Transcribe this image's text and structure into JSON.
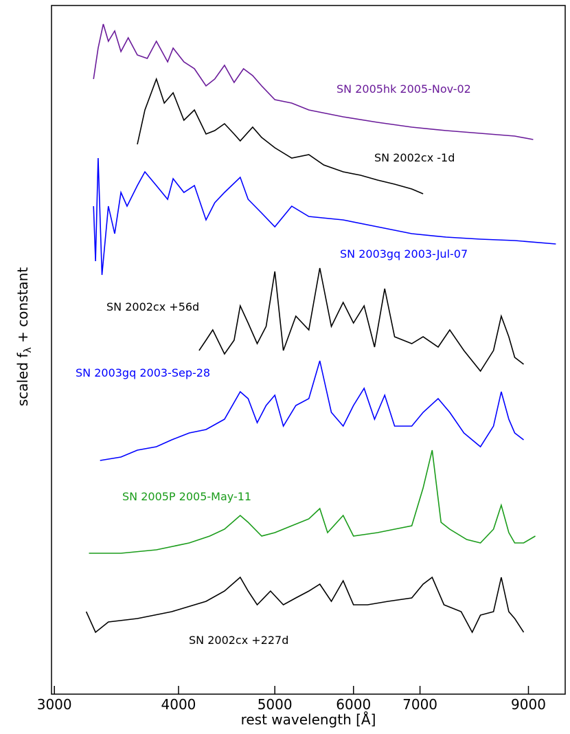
{
  "chart_data": {
    "type": "line",
    "xlabel": "rest wavelength [Å]",
    "ylabel_parts": [
      "scaled f",
      "λ",
      " + constant"
    ],
    "xscale": "log",
    "xlim": [
      2980,
      9800
    ],
    "xticks": [
      3000,
      4000,
      5000,
      6000,
      7000,
      9000
    ],
    "ylim": [
      0,
      100.2
    ],
    "series": [
      {
        "name": "SN 2005hk 2005-Nov-02",
        "color": "#6a1b9a",
        "x": [
          3285,
          3320,
          3360,
          3400,
          3450,
          3500,
          3560,
          3636,
          3720,
          3800,
          3900,
          3950,
          4050,
          4150,
          4263,
          4350,
          4450,
          4550,
          4650,
          4750,
          4850,
          5000,
          5200,
          5410,
          5858,
          6343,
          6868,
          7436,
          8052,
          8718,
          9100
        ],
        "values": [
          89.5,
          94,
          97.5,
          95,
          96.5,
          93.5,
          95.5,
          93,
          92.5,
          95,
          92,
          94,
          92,
          91,
          88.5,
          89.5,
          91.5,
          89,
          91,
          90,
          88.5,
          86.5,
          86,
          85,
          84,
          83.2,
          82.5,
          82,
          81.6,
          81.2,
          80.7
        ]
      },
      {
        "name": "SN 2002cx -1d",
        "color": "#000000",
        "x": [
          3636,
          3700,
          3800,
          3870,
          3950,
          4050,
          4150,
          4263,
          4350,
          4450,
          4550,
          4615,
          4750,
          4850,
          5000,
          5200,
          5410,
          5600,
          5858,
          6100,
          6343,
          6600,
          6868,
          7050
        ],
        "values": [
          80,
          85,
          89.5,
          86,
          87.5,
          83.5,
          85,
          81.5,
          82,
          83,
          81.5,
          80.5,
          82.5,
          81,
          79.5,
          78,
          78.5,
          77,
          76,
          75.5,
          74.8,
          74.2,
          73.5,
          72.8
        ]
      },
      {
        "name": "SN 2003gq 2003-Jul-07",
        "color": "#0000ff",
        "x": [
          3285,
          3300,
          3320,
          3350,
          3400,
          3450,
          3500,
          3550,
          3636,
          3700,
          3800,
          3900,
          3950,
          4050,
          4150,
          4263,
          4350,
          4450,
          4615,
          4700,
          4850,
          5000,
          5200,
          5410,
          5858,
          6343,
          6868,
          7436,
          8052,
          8718,
          9590
        ],
        "values": [
          71,
          63,
          78,
          61,
          71,
          67,
          73,
          71,
          74,
          76,
          74,
          72,
          75,
          73,
          74,
          69,
          71.5,
          73,
          75.2,
          72,
          70,
          68,
          71,
          69.5,
          69,
          68,
          67,
          66.5,
          66.2,
          66,
          65.5
        ]
      },
      {
        "name": "SN 2002cx +56d",
        "color": "#000000",
        "x": [
          4195,
          4263,
          4330,
          4450,
          4550,
          4615,
          4700,
          4800,
          4900,
          5000,
          5100,
          5250,
          5410,
          5550,
          5700,
          5858,
          6000,
          6150,
          6300,
          6450,
          6600,
          6868,
          7050,
          7300,
          7500,
          7750,
          8052,
          8300,
          8450,
          8600,
          8718,
          8900
        ],
        "values": [
          50,
          51.5,
          53,
          49.5,
          51.5,
          56.5,
          54,
          51,
          53.5,
          61.5,
          50,
          55,
          53,
          62,
          53.5,
          57,
          54,
          56.5,
          50.5,
          59,
          52,
          51,
          52,
          50.5,
          53,
          50,
          47,
          50,
          55,
          52,
          49,
          48
        ]
      },
      {
        "name": "SN 2003gq 2003-Sep-28",
        "color": "#0000ff",
        "x": [
          3335,
          3500,
          3636,
          3800,
          3937,
          4100,
          4263,
          4450,
          4615,
          4700,
          4800,
          4900,
          5000,
          5100,
          5250,
          5410,
          5550,
          5700,
          5858,
          6000,
          6150,
          6300,
          6450,
          6600,
          6868,
          7050,
          7300,
          7500,
          7750,
          8052,
          8300,
          8450,
          8600,
          8718,
          8900
        ],
        "values": [
          34,
          34.5,
          35.5,
          36,
          37,
          38,
          38.5,
          40,
          44,
          43,
          39.5,
          42,
          43.5,
          39,
          42,
          43,
          48.5,
          41,
          39,
          42,
          44.5,
          40,
          43.5,
          39,
          39,
          41,
          43,
          41,
          38,
          36,
          39,
          44,
          40,
          38,
          37
        ]
      },
      {
        "name": "SN 2005P 2005-May-11",
        "color": "#1a9c1a",
        "x": [
          3250,
          3500,
          3800,
          4100,
          4300,
          4450,
          4615,
          4700,
          4850,
          5000,
          5200,
          5410,
          5550,
          5650,
          5858,
          6000,
          6343,
          6600,
          6868,
          7050,
          7200,
          7350,
          7500,
          7800,
          8052,
          8300,
          8450,
          8600,
          8718,
          8900,
          9145
        ],
        "values": [
          20.5,
          20.5,
          21,
          22,
          23,
          24,
          26,
          25,
          23,
          23.5,
          24.5,
          25.5,
          27,
          23.5,
          26,
          23,
          23.5,
          24,
          24.5,
          30,
          35.5,
          25,
          24,
          22.5,
          22,
          24,
          27.5,
          23.5,
          22,
          22,
          23
        ]
      },
      {
        "name": "SN 2002cx +227d",
        "color": "#000000",
        "x": [
          3230,
          3300,
          3400,
          3636,
          3937,
          4263,
          4450,
          4615,
          4700,
          4800,
          4950,
          5100,
          5250,
          5410,
          5550,
          5700,
          5858,
          6000,
          6200,
          6500,
          6868,
          7050,
          7200,
          7400,
          7700,
          7900,
          8052,
          8300,
          8450,
          8600,
          8718,
          8900
        ],
        "values": [
          12,
          9,
          10.5,
          11,
          12,
          13.5,
          15,
          17,
          15,
          13,
          15,
          13,
          14,
          15,
          16,
          13.5,
          16.5,
          13,
          13,
          13.5,
          14,
          16,
          17,
          13,
          12,
          9,
          11.5,
          12,
          17,
          12,
          11,
          9
        ]
      }
    ]
  }
}
